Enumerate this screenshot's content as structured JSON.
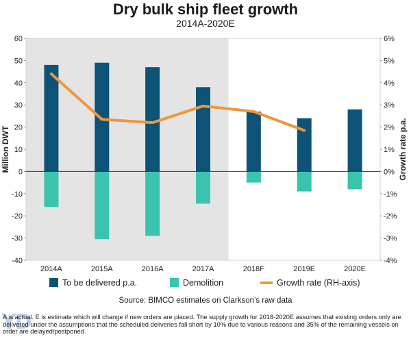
{
  "title": "Dry bulk ship fleet growth",
  "subtitle": "2014A-2020E",
  "source": "Source: BIMCO estimates on Clarkson’s raw data",
  "footnote": "A is actual. E is estimate which will change if new orders are placed. The supply growth for 2018-2020E assumes that existing orders only are delivered under the assumptions that the scheduled deliveries fall short by 10% due to various reasons and 35% of the remaining vessels on order are delayed/postponed.",
  "colors": {
    "delivered": "#0d5375",
    "demolition": "#3cc3ad",
    "growth": "#f0953a",
    "shade": "#e4e4e4"
  },
  "chart_data": {
    "type": "bar",
    "categories": [
      "2014A",
      "2015A",
      "2016A",
      "2017A",
      "2018F",
      "2019E",
      "2020E"
    ],
    "ylabel": "Million DWT",
    "y2label": "Growth rate p.a.",
    "ylim": [
      -40,
      60
    ],
    "yticks": [
      "60",
      "50",
      "40",
      "30",
      "20",
      "10",
      "0",
      "-10",
      "-20",
      "-30",
      "-40"
    ],
    "y2lim": [
      -4,
      6
    ],
    "y2ticks": [
      "6%",
      "5%",
      "4%",
      "3%",
      "2%",
      "1%",
      "0%",
      "-1%",
      "-2%",
      "-3%",
      "-4%"
    ],
    "shaded_categories": [
      "2014A",
      "2015A",
      "2016A",
      "2017A"
    ],
    "legend_position": "bottom",
    "series": [
      {
        "name": "To be delivered p.a.",
        "type": "bar",
        "axis": "left",
        "values": [
          48,
          49,
          47,
          38,
          27,
          24,
          28
        ]
      },
      {
        "name": "Demolition",
        "type": "bar",
        "axis": "left",
        "values": [
          -16,
          -30.5,
          -29,
          -14.5,
          -5,
          -9,
          -8
        ]
      },
      {
        "name": "Growth rate (RH-axis)",
        "type": "line",
        "axis": "right",
        "values": [
          4.4,
          2.35,
          2.2,
          2.95,
          2.7,
          1.85,
          null
        ]
      }
    ]
  }
}
